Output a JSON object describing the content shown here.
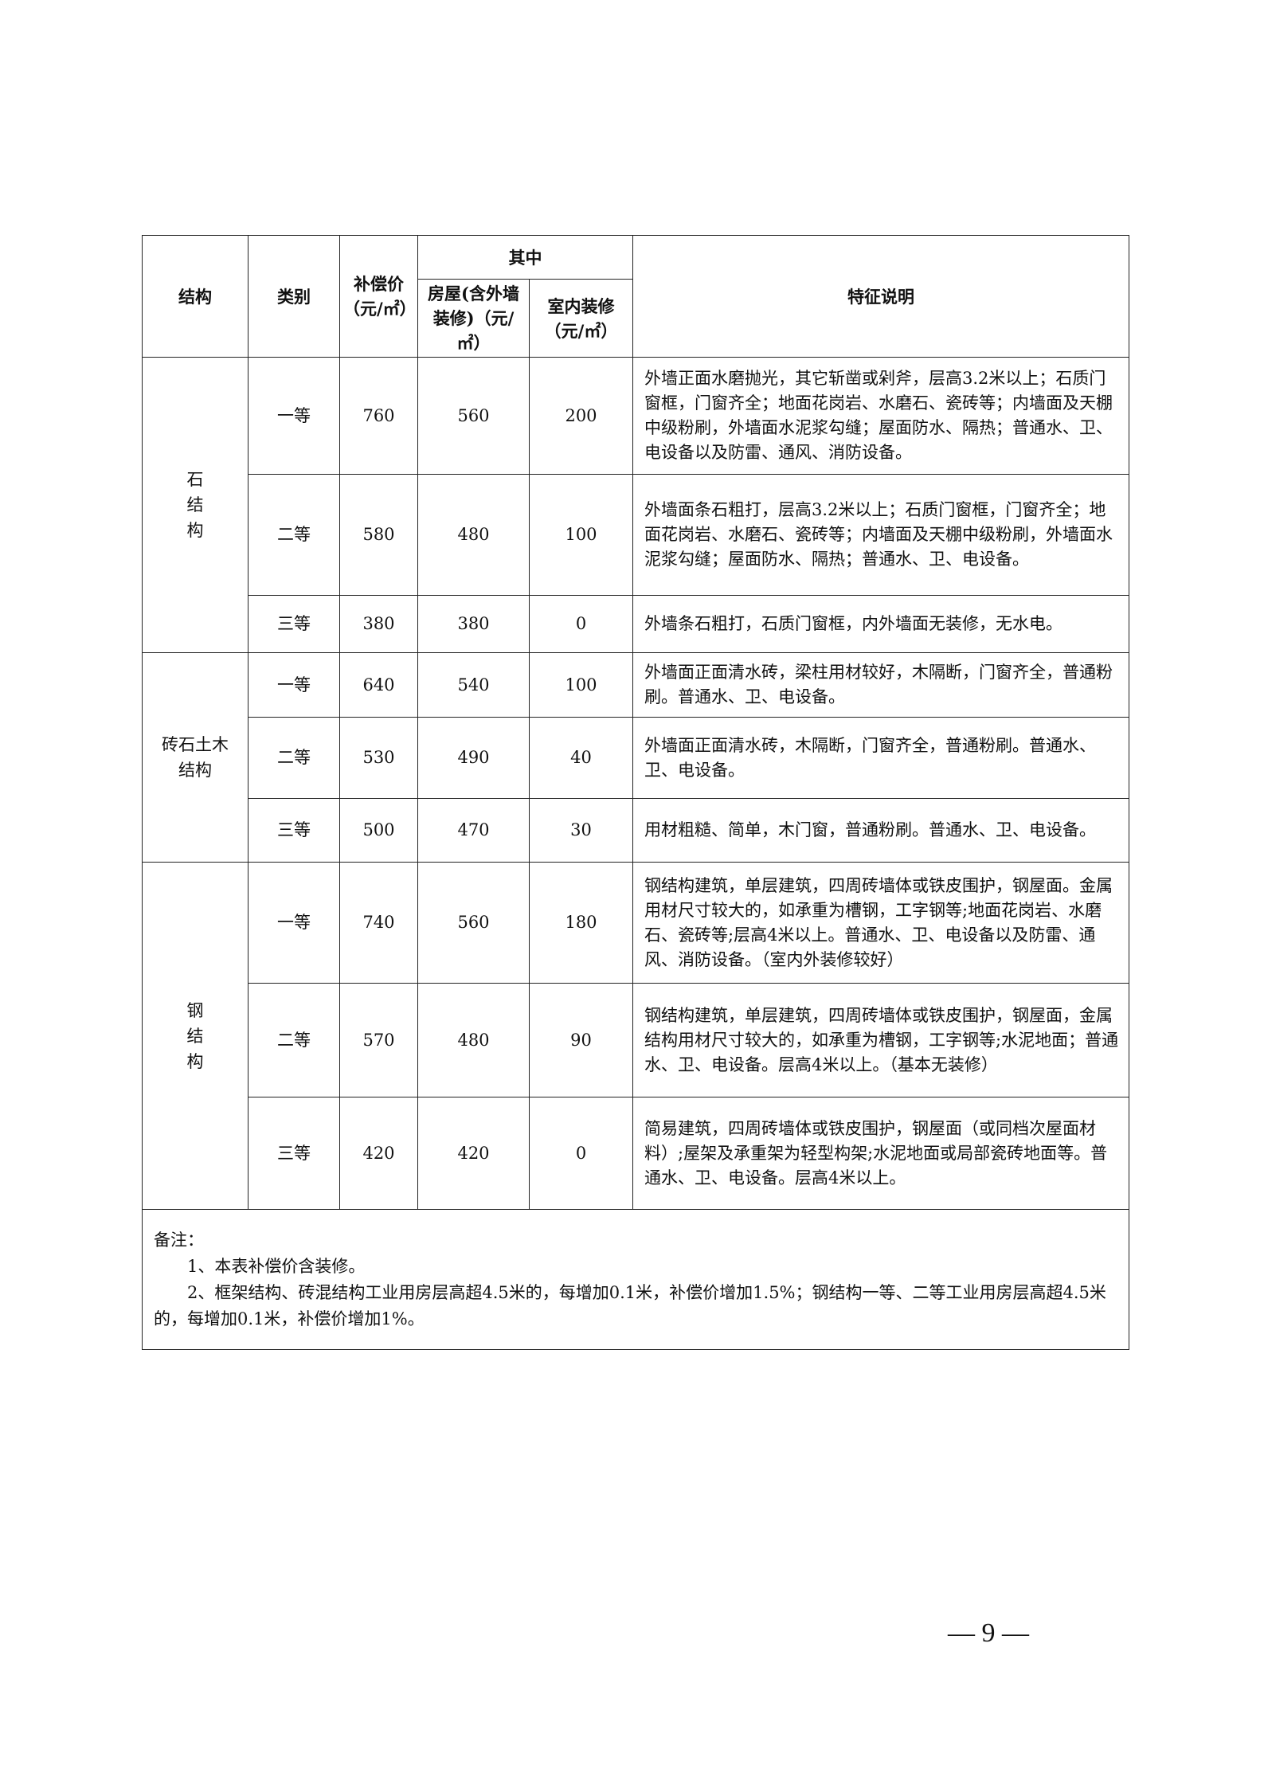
{
  "header": {
    "structure": "结构",
    "category": "类别",
    "compensation": "补偿价（元/㎡）",
    "of_which": "其中",
    "house": "房屋(含外墙装修)（元/㎡）",
    "interior": "室内装修（元/㎡）",
    "description": "特征说明"
  },
  "groups": [
    {
      "structure": "石\n结\n构",
      "rows": [
        {
          "grade": "一等",
          "price": "760",
          "house": "560",
          "interior": "200",
          "desc": "外墙正面水磨抛光，其它斩凿或剁斧，层高3.2米以上；石质门窗框，门窗齐全；地面花岗岩、水磨石、瓷砖等；内墙面及天棚中级粉刷，外墙面水泥浆勾缝；屋面防水、隔热；普通水、卫、电设备以及防雷、通风、消防设备。"
        },
        {
          "grade": "二等",
          "price": "580",
          "house": "480",
          "interior": "100",
          "desc": "外墙面条石粗打，层高3.2米以上；石质门窗框，门窗齐全；地面花岗岩、水磨石、瓷砖等；内墙面及天棚中级粉刷，外墙面水泥浆勾缝；屋面防水、隔热；普通水、卫、电设备。"
        },
        {
          "grade": "三等",
          "price": "380",
          "house": "380",
          "interior": "0",
          "desc": "外墙条石粗打，石质门窗框，内外墙面无装修，无水电。"
        }
      ]
    },
    {
      "structure": "砖石土木\n结构",
      "rows": [
        {
          "grade": "一等",
          "price": "640",
          "house": "540",
          "interior": "100",
          "desc": "外墙面正面清水砖，梁柱用材较好，木隔断，门窗齐全，普通粉刷。普通水、卫、电设备。"
        },
        {
          "grade": "二等",
          "price": "530",
          "house": "490",
          "interior": "40",
          "desc": "外墙面正面清水砖，木隔断，门窗齐全，普通粉刷。普通水、卫、电设备。"
        },
        {
          "grade": "三等",
          "price": "500",
          "house": "470",
          "interior": "30",
          "desc": "用材粗糙、简单，木门窗，普通粉刷。普通水、卫、电设备。"
        }
      ]
    },
    {
      "structure": "钢\n结\n构",
      "rows": [
        {
          "grade": "一等",
          "price": "740",
          "house": "560",
          "interior": "180",
          "desc": "钢结构建筑，单层建筑，四周砖墙体或铁皮围护，钢屋面。金属用材尺寸较大的，如承重为槽钢，工字钢等;地面花岗岩、水磨石、瓷砖等;层高4米以上。普通水、卫、电设备以及防雷、通风、消防设备。（室内外装修较好）"
        },
        {
          "grade": "二等",
          "price": "570",
          "house": "480",
          "interior": "90",
          "desc": "钢结构建筑，单层建筑，四周砖墙体或铁皮围护，钢屋面，金属结构用材尺寸较大的，如承重为槽钢，工字钢等;水泥地面；普通水、卫、电设备。层高4米以上。（基本无装修）"
        },
        {
          "grade": "三等",
          "price": "420",
          "house": "420",
          "interior": "0",
          "desc": "简易建筑，四周砖墙体或铁皮围护，钢屋面（或同档次屋面材料）;屋架及承重架为轻型构架;水泥地面或局部瓷砖地面等。普通水、卫、电设备。层高4米以上。"
        }
      ]
    }
  ],
  "notes": {
    "title": "备注：",
    "items": [
      "1、本表补偿价含装修。",
      "2、框架结构、砖混结构工业用房层高超4.5米的，每增加0.1米，补偿价增加1.5%；钢结构一等、二等工业用房层高超4.5米的，每增加0.1米，补偿价增加1%。"
    ]
  },
  "page_number": "— 9 —"
}
